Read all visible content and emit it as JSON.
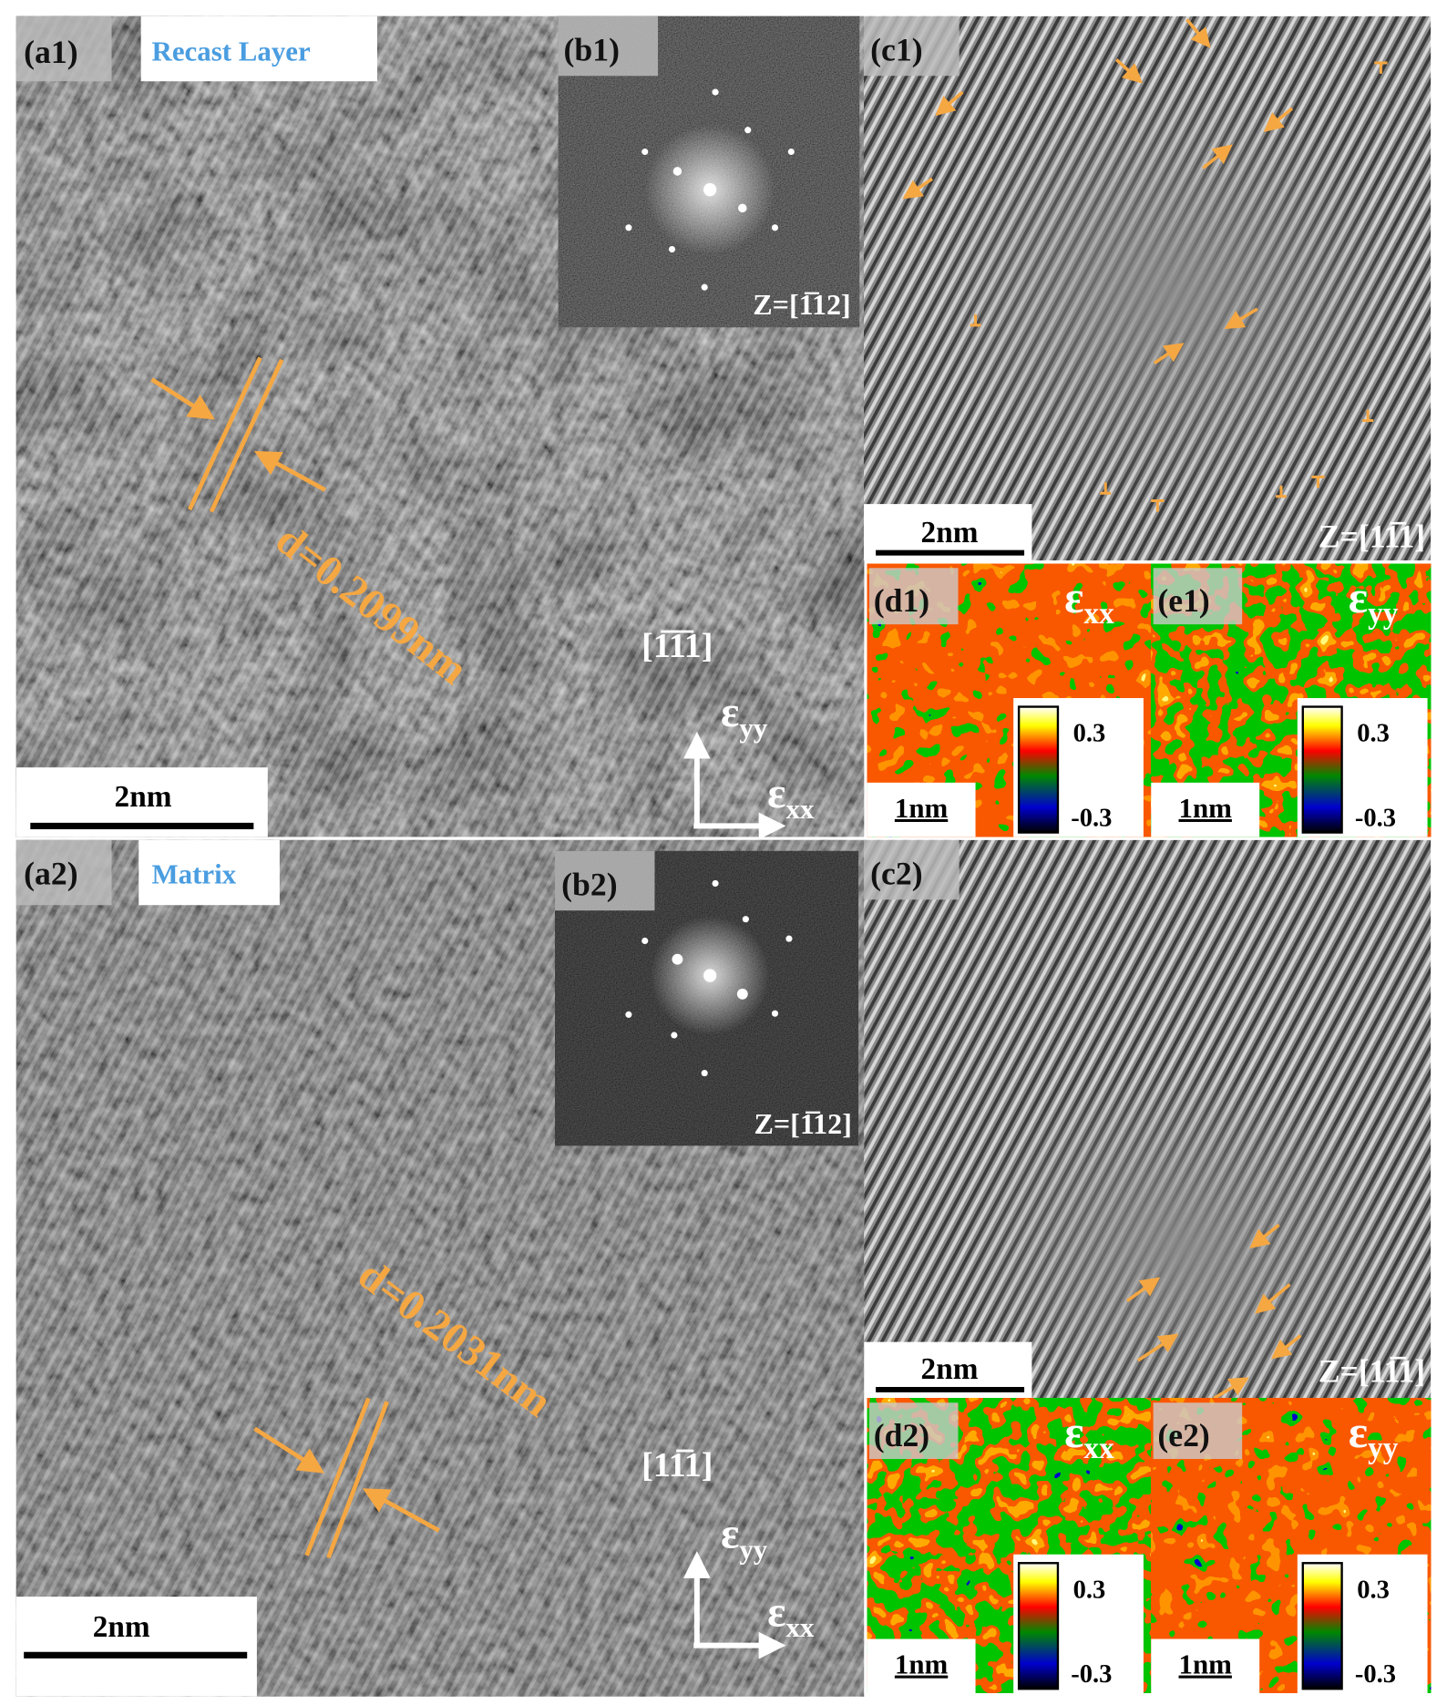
{
  "panels": {
    "a1": {
      "label": "(a1)",
      "title": "Recast Layer",
      "spacing": "d=0.2099nm",
      "scale_bar": "2nm",
      "direction": "[1̅1̅1]",
      "strain_yy": {
        "symbol": "ε",
        "sub": "yy"
      },
      "strain_xx": {
        "symbol": "ε",
        "sub": "xx"
      }
    },
    "b1": {
      "label": "(b1)",
      "zone_axis": "Z=[1̅12]"
    },
    "c1": {
      "label": "(c1)",
      "scale_bar": "2nm",
      "zone_axis": "Z=[11̅1]"
    },
    "d1": {
      "label": "(d1)",
      "strain": {
        "symbol": "ε",
        "sub": "xx"
      },
      "scale_bar": "1nm",
      "colorbar": {
        "max": 0.3,
        "min": -0.3
      }
    },
    "e1": {
      "label": "(e1)",
      "strain": {
        "symbol": "ε",
        "sub": "yy"
      },
      "scale_bar": "1nm",
      "colorbar": {
        "max": 0.3,
        "min": -0.3
      }
    },
    "a2": {
      "label": "(a2)",
      "title": "Matrix",
      "spacing": "d=0.2031nm",
      "scale_bar": "2nm",
      "direction": "[11̅1]",
      "strain_yy": {
        "symbol": "ε",
        "sub": "yy"
      },
      "strain_xx": {
        "symbol": "ε",
        "sub": "xx"
      }
    },
    "b2": {
      "label": "(b2)",
      "zone_axis": "Z=[1̅12]"
    },
    "c2": {
      "label": "(c2)",
      "scale_bar": "2nm",
      "zone_axis": "Z=[11̅1]"
    },
    "d2": {
      "label": "(d2)",
      "strain": {
        "symbol": "ε",
        "sub": "xx"
      },
      "scale_bar": "1nm",
      "colorbar": {
        "max": 0.3,
        "min": -0.3
      }
    },
    "e2": {
      "label": "(e2)",
      "strain": {
        "symbol": "ε",
        "sub": "yy"
      },
      "scale_bar": "1nm",
      "colorbar": {
        "max": 0.3,
        "min": -0.3
      }
    }
  }
}
